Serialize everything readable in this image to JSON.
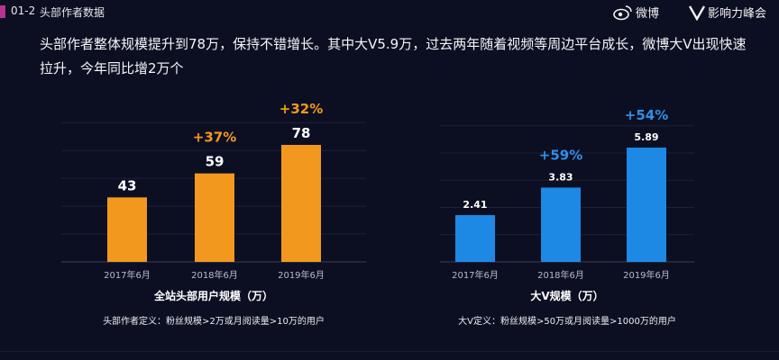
{
  "header": {
    "section_number": "01-2",
    "section_title": "头部作者数据",
    "brand_weibo": "微博",
    "brand_summit": "影响力峰会"
  },
  "headline": "头部作者整体规模提升到78万，保持不错增长。其中大V5.9万，过去两年随着视频等周边平台成长，微博大V出现快速拉升，今年同比增2万个",
  "colors": {
    "left_bar": "#f3981f",
    "right_bar": "#1e88e5",
    "left_growth": "#f3981f",
    "right_growth": "#2f8fe8"
  },
  "chart_data": [
    {
      "type": "bar",
      "title": "全站头部用户规模（万）",
      "categories": [
        "2017年6月",
        "2018年6月",
        "2019年6月"
      ],
      "values": [
        43,
        59,
        78
      ],
      "value_labels": [
        "43",
        "59",
        "78"
      ],
      "growth_labels": [
        "",
        "+37%",
        "+32%"
      ],
      "ylim": [
        0,
        78
      ],
      "note": "头部作者定义：粉丝规模>2万或月阅读量>10万的用户"
    },
    {
      "type": "bar",
      "title": "大V规模（万）",
      "categories": [
        "2017年6月",
        "2018年6月",
        "2019年6月"
      ],
      "values": [
        2.41,
        3.83,
        5.89
      ],
      "value_labels": [
        "2.41",
        "3.83",
        "5.89"
      ],
      "growth_labels": [
        "",
        "+59%",
        "+54%"
      ],
      "ylim": [
        0,
        5.89
      ],
      "note": "大V定义：粉丝规模>50万或月阅读量>1000万的用户"
    }
  ]
}
